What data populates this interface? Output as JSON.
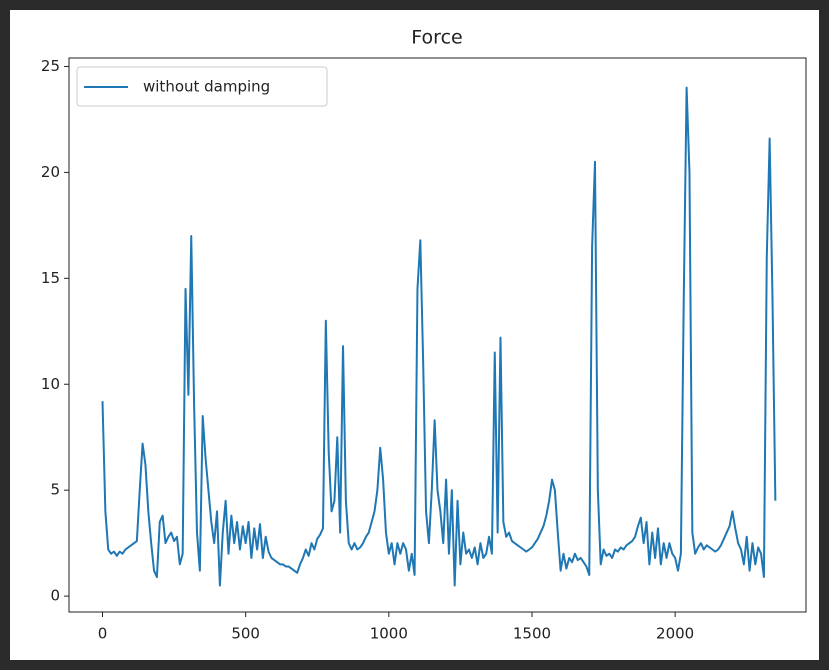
{
  "chart_data": {
    "type": "line",
    "title": "Force",
    "x": [
      0,
      10,
      20,
      30,
      40,
      50,
      60,
      70,
      80,
      90,
      100,
      110,
      120,
      130,
      140,
      150,
      160,
      170,
      180,
      190,
      200,
      210,
      220,
      230,
      240,
      250,
      260,
      270,
      280,
      290,
      300,
      310,
      320,
      330,
      340,
      350,
      360,
      370,
      380,
      390,
      400,
      410,
      420,
      430,
      440,
      450,
      460,
      470,
      480,
      490,
      500,
      510,
      520,
      530,
      540,
      550,
      560,
      570,
      580,
      590,
      600,
      610,
      620,
      630,
      640,
      650,
      660,
      670,
      680,
      690,
      700,
      710,
      720,
      730,
      740,
      750,
      760,
      770,
      780,
      790,
      800,
      810,
      820,
      830,
      840,
      850,
      860,
      870,
      880,
      890,
      900,
      910,
      920,
      930,
      940,
      950,
      960,
      970,
      980,
      990,
      1000,
      1010,
      1020,
      1030,
      1040,
      1050,
      1060,
      1070,
      1080,
      1090,
      1100,
      1110,
      1120,
      1130,
      1140,
      1150,
      1160,
      1170,
      1180,
      1190,
      1200,
      1210,
      1220,
      1230,
      1240,
      1250,
      1260,
      1270,
      1280,
      1290,
      1300,
      1310,
      1320,
      1330,
      1340,
      1350,
      1360,
      1370,
      1380,
      1390,
      1400,
      1410,
      1420,
      1430,
      1440,
      1450,
      1460,
      1470,
      1480,
      1490,
      1500,
      1510,
      1520,
      1530,
      1540,
      1550,
      1560,
      1570,
      1580,
      1590,
      1600,
      1610,
      1620,
      1630,
      1640,
      1650,
      1660,
      1670,
      1680,
      1690,
      1700,
      1710,
      1720,
      1730,
      1740,
      1750,
      1760,
      1770,
      1780,
      1790,
      1800,
      1810,
      1820,
      1830,
      1840,
      1850,
      1860,
      1870,
      1880,
      1890,
      1900,
      1910,
      1920,
      1930,
      1940,
      1950,
      1960,
      1970,
      1980,
      1990,
      2000,
      2010,
      2020,
      2030,
      2040,
      2050,
      2060,
      2070,
      2080,
      2090,
      2100,
      2110,
      2120,
      2130,
      2140,
      2150,
      2160,
      2170,
      2180,
      2190,
      2200,
      2210,
      2220,
      2230,
      2240,
      2250,
      2260,
      2270,
      2280,
      2290,
      2300,
      2310,
      2320,
      2330,
      2340,
      2350
    ],
    "series": [
      {
        "name": "without damping",
        "color": "#1f77b4",
        "values": [
          9.2,
          4,
          2.2,
          2,
          2.1,
          1.9,
          2.1,
          2,
          2.2,
          2.3,
          2.4,
          2.5,
          2.6,
          5,
          7.2,
          6.2,
          4,
          2.5,
          1.2,
          0.9,
          3.5,
          3.8,
          2.5,
          2.8,
          3,
          2.6,
          2.8,
          1.5,
          2,
          14.5,
          9.5,
          17,
          9,
          3,
          1.2,
          8.5,
          6.5,
          5,
          3.5,
          2.5,
          4,
          0.5,
          3,
          4.5,
          2,
          3.8,
          2.5,
          3.5,
          2.2,
          3.3,
          2.5,
          3.5,
          1.8,
          3.2,
          2.2,
          3.4,
          1.8,
          2.8,
          2.1,
          1.8,
          1.7,
          1.6,
          1.5,
          1.5,
          1.4,
          1.4,
          1.3,
          1.2,
          1.1,
          1.5,
          1.8,
          2.2,
          1.9,
          2.5,
          2.2,
          2.7,
          2.9,
          3.2,
          13,
          6.8,
          4,
          4.5,
          7.5,
          3,
          11.8,
          4.5,
          2.5,
          2.2,
          2.5,
          2.2,
          2.3,
          2.5,
          2.8,
          3,
          3.5,
          4,
          5,
          7,
          5.5,
          3,
          2,
          2.5,
          1.5,
          2.5,
          2,
          2.5,
          2.2,
          1.2,
          2,
          1,
          14.5,
          16.8,
          11,
          4,
          2.5,
          5,
          8.3,
          5,
          4,
          2.5,
          5.5,
          2,
          5,
          0.5,
          4.5,
          1.5,
          3,
          2,
          2.2,
          1.8,
          2.3,
          1.5,
          2.5,
          1.8,
          2,
          2.8,
          2,
          11.5,
          3,
          12.2,
          3.5,
          2.8,
          3,
          2.6,
          2.5,
          2.4,
          2.3,
          2.2,
          2.1,
          2.2,
          2.3,
          2.5,
          2.7,
          3,
          3.3,
          3.8,
          4.5,
          5.5,
          5,
          3,
          1.2,
          2,
          1.3,
          1.8,
          1.6,
          2,
          1.7,
          1.8,
          1.6,
          1.4,
          1,
          16.5,
          20.5,
          5,
          1.5,
          2.2,
          1.9,
          2,
          1.8,
          2.2,
          2.1,
          2.3,
          2.2,
          2.4,
          2.5,
          2.6,
          2.8,
          3.3,
          3.7,
          2.5,
          3.5,
          1.5,
          3,
          1.8,
          3.2,
          1.5,
          2.5,
          1.8,
          2.5,
          2,
          1.8,
          1.2,
          2,
          14,
          24,
          20,
          3,
          2,
          2.3,
          2.5,
          2.2,
          2.4,
          2.3,
          2.2,
          2.1,
          2.2,
          2.4,
          2.7,
          3,
          3.3,
          4,
          3.2,
          2.5,
          2.2,
          1.5,
          2.8,
          1.2,
          2.5,
          1.5,
          2.3,
          2,
          0.9,
          16,
          21.6,
          14,
          4.5
        ]
      }
    ],
    "xlim": [
      -117,
      2457
    ],
    "xticks": [
      0,
      500,
      1000,
      1500,
      2000
    ],
    "ylim": [
      -0.75,
      25.4
    ],
    "yticks": [
      0,
      5,
      10,
      15,
      20,
      25
    ],
    "legend": "upper left"
  }
}
